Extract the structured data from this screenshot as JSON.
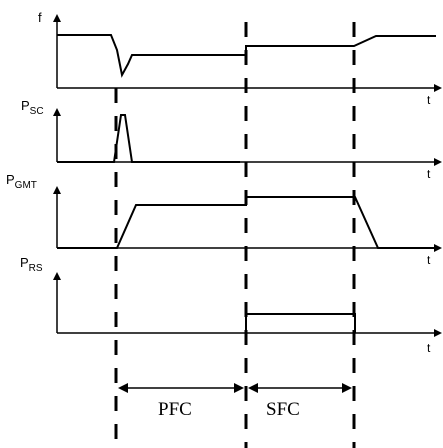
{
  "labels": {
    "f": "f",
    "psc_main": "P",
    "psc_sub": "SC",
    "pgmt_main": "P",
    "pgmt_sub": "GMT",
    "prs_main": "P",
    "prs_sub": "RS",
    "t": "t"
  },
  "intervals": {
    "pfc": "PFC",
    "sfc": "SFC"
  }
}
